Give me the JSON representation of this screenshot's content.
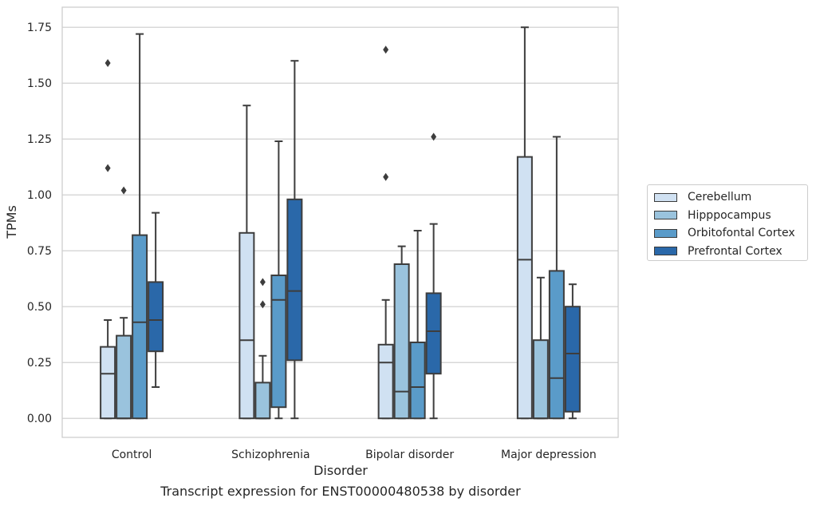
{
  "chart_data": {
    "type": "box",
    "xlabel": "Disorder",
    "ylabel": "TPMs",
    "caption": "Transcript expression for ENST00000480538 by disorder",
    "ylim": [
      -0.085,
      1.84
    ],
    "yticks": [
      0.0,
      0.25,
      0.5,
      0.75,
      1.0,
      1.25,
      1.5,
      1.75
    ],
    "ytick_labels": [
      "0.00",
      "0.25",
      "0.50",
      "0.75",
      "1.00",
      "1.25",
      "1.50",
      "1.75"
    ],
    "categories": [
      "Control",
      "Schizophrenia",
      "Bipolar disorder",
      "Major depression"
    ],
    "grid": "horizontal",
    "legend_position": "right",
    "series": [
      {
        "name": "Cerebellum",
        "color": "#d0e1f2",
        "boxes": [
          {
            "whisker_low": 0.0,
            "q1": 0.0,
            "median": 0.2,
            "q3": 0.32,
            "whisker_high": 0.44,
            "outliers": [
              1.12,
              1.59
            ]
          },
          {
            "whisker_low": 0.0,
            "q1": 0.0,
            "median": 0.35,
            "q3": 0.83,
            "whisker_high": 1.4,
            "outliers": []
          },
          {
            "whisker_low": 0.0,
            "q1": 0.0,
            "median": 0.25,
            "q3": 0.33,
            "whisker_high": 0.53,
            "outliers": [
              1.08,
              1.65
            ]
          },
          {
            "whisker_low": 0.0,
            "q1": 0.0,
            "median": 0.71,
            "q3": 1.17,
            "whisker_high": 1.75,
            "outliers": []
          }
        ]
      },
      {
        "name": "Hipppocampus",
        "color": "#9ac3dd",
        "boxes": [
          {
            "whisker_low": 0.0,
            "q1": 0.0,
            "median": 0.0,
            "q3": 0.37,
            "whisker_high": 0.45,
            "outliers": [
              1.02
            ]
          },
          {
            "whisker_low": 0.0,
            "q1": 0.0,
            "median": 0.0,
            "q3": 0.16,
            "whisker_high": 0.28,
            "outliers": [
              0.51,
              0.61
            ]
          },
          {
            "whisker_low": 0.0,
            "q1": 0.0,
            "median": 0.12,
            "q3": 0.69,
            "whisker_high": 0.77,
            "outliers": []
          },
          {
            "whisker_low": 0.0,
            "q1": 0.0,
            "median": 0.0,
            "q3": 0.35,
            "whisker_high": 0.63,
            "outliers": []
          }
        ]
      },
      {
        "name": "Orbitofontal Cortex",
        "color": "#5a9bc9",
        "boxes": [
          {
            "whisker_low": 0.0,
            "q1": 0.0,
            "median": 0.43,
            "q3": 0.82,
            "whisker_high": 1.72,
            "outliers": []
          },
          {
            "whisker_low": 0.0,
            "q1": 0.05,
            "median": 0.53,
            "q3": 0.64,
            "whisker_high": 1.24,
            "outliers": []
          },
          {
            "whisker_low": 0.0,
            "q1": 0.0,
            "median": 0.14,
            "q3": 0.34,
            "whisker_high": 0.84,
            "outliers": []
          },
          {
            "whisker_low": 0.0,
            "q1": 0.0,
            "median": 0.18,
            "q3": 0.66,
            "whisker_high": 1.26,
            "outliers": []
          }
        ]
      },
      {
        "name": "Prefrontal Cortex",
        "color": "#2a68a9",
        "boxes": [
          {
            "whisker_low": 0.14,
            "q1": 0.3,
            "median": 0.44,
            "q3": 0.61,
            "whisker_high": 0.92,
            "outliers": []
          },
          {
            "whisker_low": 0.0,
            "q1": 0.26,
            "median": 0.57,
            "q3": 0.98,
            "whisker_high": 1.6,
            "outliers": []
          },
          {
            "whisker_low": 0.0,
            "q1": 0.2,
            "median": 0.39,
            "q3": 0.56,
            "whisker_high": 0.87,
            "outliers": [
              1.26
            ]
          },
          {
            "whisker_low": 0.0,
            "q1": 0.03,
            "median": 0.29,
            "q3": 0.5,
            "whisker_high": 0.6,
            "outliers": []
          }
        ]
      }
    ]
  }
}
